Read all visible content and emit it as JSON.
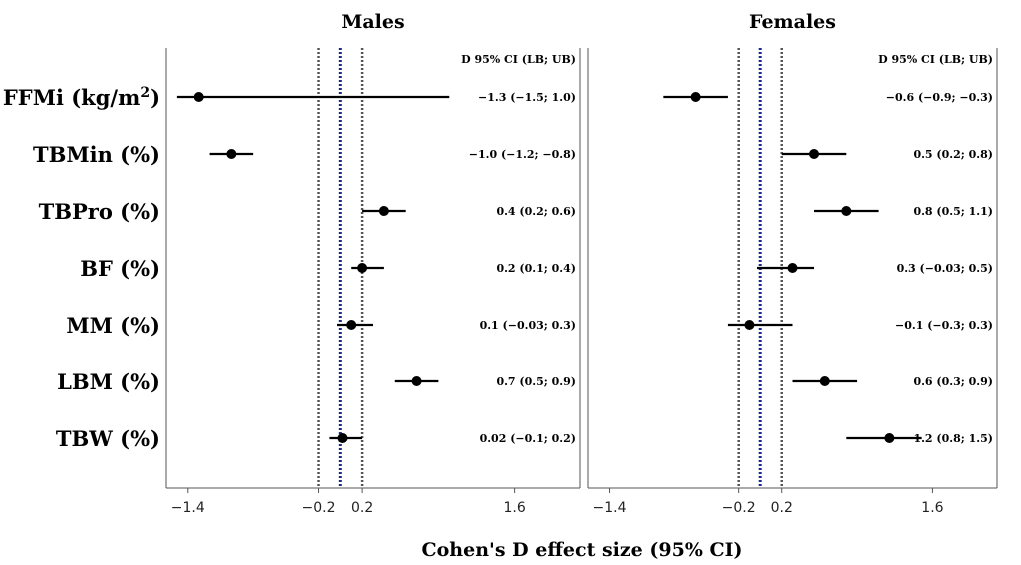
{
  "chart_data": {
    "type": "forest",
    "xlabel": "Cohen's D effect size (95% CI)",
    "column_header": "D 95% CI (LB; UB)",
    "categories": [
      "FFMi (kg/m²)",
      "TBMin (%)",
      "TBPro (%)",
      "BF (%)",
      "MM (%)",
      "LBM (%)",
      "TBW (%)"
    ],
    "xlim": [
      -1.6,
      2.2
    ],
    "xticks": [
      -1.4,
      -0.2,
      0.2,
      1.6
    ],
    "xtick_labels": [
      "−1.4",
      "−0.2",
      "0.2",
      "1.6"
    ],
    "reference_lines": [
      -0.2,
      0.0,
      0.2
    ],
    "panels": [
      {
        "title": "Males",
        "points": [
          {
            "d": -1.3,
            "lb": -1.5,
            "ub": 1.0,
            "label": "−1.3 (−1.5; 1.0)"
          },
          {
            "d": -1.0,
            "lb": -1.2,
            "ub": -0.8,
            "label": "−1.0 (−1.2; −0.8)"
          },
          {
            "d": 0.4,
            "lb": 0.2,
            "ub": 0.6,
            "label": "0.4 (0.2; 0.6)"
          },
          {
            "d": 0.2,
            "lb": 0.1,
            "ub": 0.4,
            "label": "0.2 (0.1; 0.4)"
          },
          {
            "d": 0.1,
            "lb": -0.03,
            "ub": 0.3,
            "label": "0.1 (−0.03; 0.3)"
          },
          {
            "d": 0.7,
            "lb": 0.5,
            "ub": 0.9,
            "label": "0.7 (0.5; 0.9)"
          },
          {
            "d": 0.02,
            "lb": -0.1,
            "ub": 0.2,
            "label": "0.02 (−0.1; 0.2)"
          }
        ]
      },
      {
        "title": "Females",
        "points": [
          {
            "d": -0.6,
            "lb": -0.9,
            "ub": -0.3,
            "label": "−0.6 (−0.9; −0.3)"
          },
          {
            "d": 0.5,
            "lb": 0.2,
            "ub": 0.8,
            "label": "0.5 (0.2; 0.8)"
          },
          {
            "d": 0.8,
            "lb": 0.5,
            "ub": 1.1,
            "label": "0.8 (0.5; 1.1)"
          },
          {
            "d": 0.3,
            "lb": -0.03,
            "ub": 0.5,
            "label": "0.3 (−0.03; 0.5)"
          },
          {
            "d": -0.1,
            "lb": -0.3,
            "ub": 0.3,
            "label": "−0.1 (−0.3; 0.3)"
          },
          {
            "d": 0.6,
            "lb": 0.3,
            "ub": 0.9,
            "label": "0.6 (0.3; 0.9)"
          },
          {
            "d": 1.2,
            "lb": 0.8,
            "ub": 1.5,
            "label": "1.2 (0.8; 1.5)"
          }
        ]
      }
    ]
  }
}
